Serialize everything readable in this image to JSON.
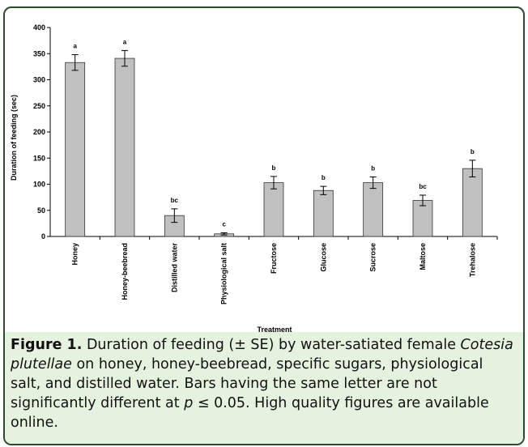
{
  "chart_data": {
    "type": "bar",
    "ylabel": "Duration of feeding (sec)",
    "xlabel": "Treatment",
    "categories": [
      "Honey",
      "Honey-beebread",
      "Distilled water",
      "Physiological salt",
      "Fructose",
      "Glucose",
      "Sucrose",
      "Maltose",
      "Trehalose"
    ],
    "values": [
      333,
      341,
      40,
      5,
      103,
      88,
      103,
      69,
      130
    ],
    "errors": [
      15,
      15,
      13,
      2,
      12,
      8,
      11,
      10,
      16
    ],
    "letters": [
      "a",
      "a",
      "bc",
      "c",
      "b",
      "b",
      "b",
      "bc",
      "b"
    ],
    "color": "#c0c0c0",
    "ylim": [
      0,
      400
    ],
    "yticks": [
      0,
      50,
      100,
      150,
      200,
      250,
      300,
      350,
      400
    ]
  },
  "caption": {
    "label": "Figure 1.",
    "parts": [
      "Duration of feeding (± SE) by water-satiated female ",
      "Cotesia plutellae",
      " on honey, honey-beebread, specific sugars, physiological salt, and distilled water. Bars having the same letter are not significantly different at ",
      "p",
      " ≤ 0.05. High quality figures are available online."
    ]
  }
}
